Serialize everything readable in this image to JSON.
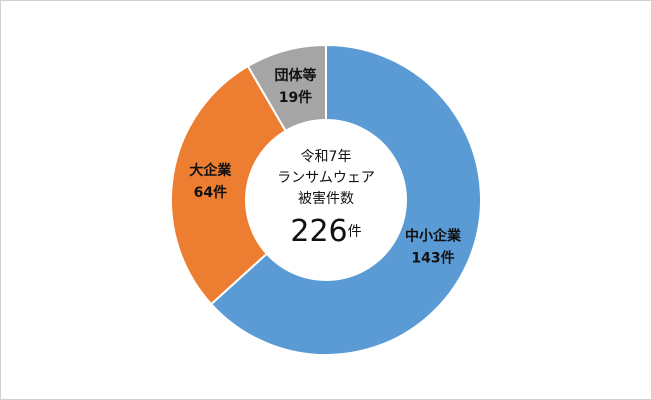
{
  "chart_data": {
    "type": "donut",
    "categories": [
      "中小企業",
      "大企業",
      "団体等"
    ],
    "values": [
      143,
      64,
      19
    ],
    "value_labels": [
      "143件",
      "64件",
      "19件"
    ],
    "colors": [
      "#5b9bd5",
      "#ed7d31",
      "#a5a5a5"
    ],
    "center_text": [
      "令和7年",
      "ランサムウェア",
      "被害件数"
    ],
    "total": 226,
    "total_unit": "件"
  }
}
